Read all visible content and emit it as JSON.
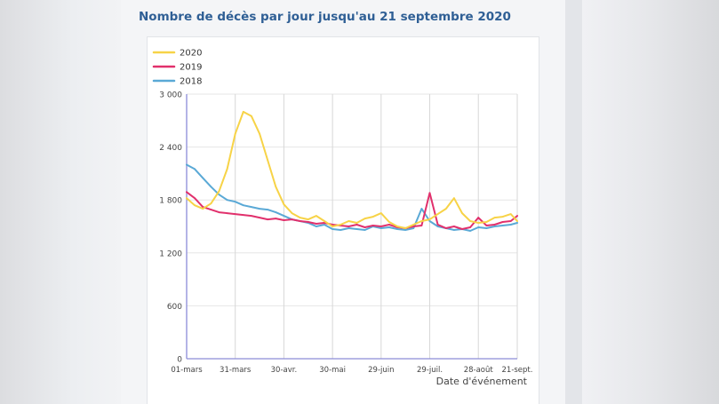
{
  "page": {
    "title": "Nombre de décès par jour jusqu'au 21 septembre 2020"
  },
  "chart_data": {
    "type": "line",
    "title": "Nombre de décès par jour jusqu'au 21 septembre 2020",
    "xlabel": "Date d'événement",
    "ylabel": "",
    "ylim": [
      0,
      3000
    ],
    "xlim": [
      "01-mars",
      "21-sept."
    ],
    "grid": true,
    "legend_position": "top-left",
    "x_ticks": [
      "01-mars",
      "31-mars",
      "30-avr.",
      "30-mai",
      "29-juin",
      "29-juil.",
      "28-août",
      "21-sept."
    ],
    "x_tick_days": [
      0,
      30,
      60,
      90,
      120,
      150,
      180,
      204
    ],
    "y_ticks": [
      0,
      600,
      1200,
      1800,
      2400,
      3000
    ],
    "y_tick_labels": [
      "0",
      "600",
      "1 200",
      "1 800",
      "2 400",
      "3 000"
    ],
    "series": [
      {
        "name": "2020",
        "color": "#f7d347",
        "x": [
          "01-mars",
          "06-mars",
          "11-mars",
          "16-mars",
          "21-mars",
          "26-mars",
          "31-mars",
          "05-avr.",
          "10-avr.",
          "15-avr.",
          "20-avr.",
          "25-avr.",
          "30-avr.",
          "05-mai",
          "10-mai",
          "15-mai",
          "20-mai",
          "25-mai",
          "30-mai",
          "04-juin",
          "09-juin",
          "14-juin",
          "19-juin",
          "24-juin",
          "29-juin",
          "04-juil.",
          "09-juil.",
          "14-juil.",
          "19-juil.",
          "24-juil.",
          "29-juil.",
          "03-août",
          "08-août",
          "13-août",
          "18-août",
          "23-août",
          "28-août",
          "02-sept.",
          "07-sept.",
          "12-sept.",
          "17-sept.",
          "21-sept."
        ],
        "y": [
          1820,
          1740,
          1700,
          1760,
          1900,
          2150,
          2550,
          2800,
          2750,
          2550,
          2250,
          1950,
          1750,
          1650,
          1600,
          1580,
          1620,
          1560,
          1500,
          1520,
          1560,
          1540,
          1590,
          1610,
          1650,
          1550,
          1500,
          1480,
          1520,
          1560,
          1580,
          1640,
          1700,
          1820,
          1650,
          1560,
          1540,
          1550,
          1600,
          1610,
          1640,
          1560
        ]
      },
      {
        "name": "2019",
        "color": "#e1306c",
        "x": [
          "01-mars",
          "06-mars",
          "11-mars",
          "16-mars",
          "21-mars",
          "26-mars",
          "31-mars",
          "05-avr.",
          "10-avr.",
          "15-avr.",
          "20-avr.",
          "25-avr.",
          "30-avr.",
          "05-mai",
          "10-mai",
          "15-mai",
          "20-mai",
          "25-mai",
          "30-mai",
          "04-juin",
          "09-juin",
          "14-juin",
          "19-juin",
          "24-juin",
          "29-juin",
          "04-juil.",
          "09-juil.",
          "14-juil.",
          "19-juil.",
          "24-juil.",
          "29-juil.",
          "03-août",
          "08-août",
          "13-août",
          "18-août",
          "23-août",
          "28-août",
          "02-sept.",
          "07-sept.",
          "12-sept.",
          "17-sept.",
          "21-sept."
        ],
        "y": [
          1890,
          1820,
          1720,
          1690,
          1660,
          1650,
          1640,
          1630,
          1620,
          1600,
          1580,
          1590,
          1570,
          1580,
          1560,
          1550,
          1530,
          1540,
          1520,
          1510,
          1500,
          1520,
          1490,
          1510,
          1500,
          1520,
          1490,
          1480,
          1500,
          1510,
          1880,
          1520,
          1480,
          1500,
          1470,
          1490,
          1600,
          1510,
          1520,
          1550,
          1560,
          1620
        ]
      },
      {
        "name": "2018",
        "color": "#5aa9d6",
        "x": [
          "01-mars",
          "06-mars",
          "11-mars",
          "16-mars",
          "21-mars",
          "26-mars",
          "31-mars",
          "05-avr.",
          "10-avr.",
          "15-avr.",
          "20-avr.",
          "25-avr.",
          "30-avr.",
          "05-mai",
          "10-mai",
          "15-mai",
          "20-mai",
          "25-mai",
          "30-mai",
          "04-juin",
          "09-juin",
          "14-juin",
          "19-juin",
          "24-juin",
          "29-juin",
          "04-juil.",
          "09-juil.",
          "14-juil.",
          "19-juil.",
          "24-juil.",
          "29-juil.",
          "03-août",
          "08-août",
          "13-août",
          "18-août",
          "23-août",
          "28-août",
          "02-sept.",
          "07-sept.",
          "12-sept.",
          "17-sept.",
          "21-sept."
        ],
        "y": [
          2200,
          2150,
          2050,
          1950,
          1860,
          1800,
          1780,
          1740,
          1720,
          1700,
          1690,
          1660,
          1620,
          1580,
          1560,
          1540,
          1500,
          1520,
          1470,
          1460,
          1480,
          1470,
          1460,
          1500,
          1480,
          1490,
          1470,
          1460,
          1480,
          1700,
          1560,
          1500,
          1480,
          1460,
          1470,
          1450,
          1490,
          1480,
          1500,
          1510,
          1520,
          1540
        ]
      }
    ]
  }
}
